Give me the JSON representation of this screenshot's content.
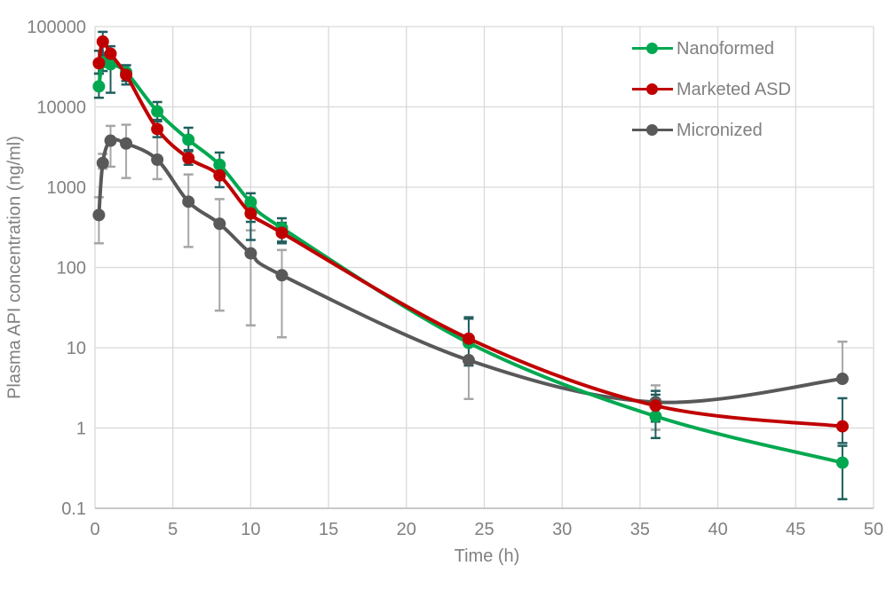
{
  "figure": {
    "background": "#ffffff",
    "text_color": "#808080",
    "gridline_color": "#D9D9D9",
    "axis_line_color": "#C9C9C9"
  },
  "chart_data": {
    "type": "line",
    "title": "",
    "xlabel": "Time (h)",
    "ylabel": "Plasma API concentration (ng/ml)",
    "grid": true,
    "legend_position": "top-right",
    "x_axis": {
      "label": "Time (h)",
      "min": 0,
      "max": 50,
      "ticks": [
        0,
        5,
        10,
        15,
        20,
        25,
        30,
        35,
        40,
        45,
        50
      ]
    },
    "y_axis": {
      "label": "Plasma API concentration (ng/ml)",
      "scale": "log",
      "min": 0.1,
      "max": 100000,
      "tick_labels": [
        "100000",
        "10000",
        "1000",
        "100",
        "10",
        "1",
        "0.1"
      ],
      "tick_values": [
        100000,
        10000,
        1000,
        100,
        10,
        1,
        0.1
      ]
    },
    "x": [
      0.25,
      0.5,
      1,
      2,
      4,
      6,
      8,
      10,
      12,
      24,
      36,
      48
    ],
    "series": [
      {
        "name": "Micronized",
        "color": "#595959",
        "error_color": "#A6A6A6",
        "values": [
          450,
          2000,
          3800,
          3500,
          2200,
          660,
          350,
          150,
          80,
          7,
          2.1,
          4.1
        ],
        "err_lo": [
          200,
          1700,
          1800,
          1300,
          1260,
          180,
          29,
          19,
          13.5,
          2.3,
          0.95,
          4.1
        ],
        "err_hi": [
          750,
          2600,
          5800,
          6000,
          5400,
          1440,
          710,
          290,
          165,
          12,
          3.4,
          11.9
        ]
      },
      {
        "name": "Nanoformed",
        "color": "#00A850",
        "error_color": "#1E5F5A",
        "values": [
          18000,
          36000,
          34000,
          27000,
          8800,
          3900,
          1900,
          650,
          310,
          11.5,
          1.4,
          0.37
        ],
        "err_lo": [
          13000,
          28000,
          15000,
          21000,
          6900,
          2800,
          1400,
          370,
          210,
          6,
          0.75,
          0.13
        ],
        "err_hi": [
          26000,
          44000,
          42000,
          33000,
          11500,
          5500,
          2700,
          840,
          410,
          23,
          2.6,
          0.6
        ]
      },
      {
        "name": "Marketed ASD",
        "color": "#C00000",
        "error_color": "#235E62",
        "values": [
          35000,
          65000,
          46000,
          25000,
          5300,
          2300,
          1400,
          470,
          270,
          13,
          1.9,
          1.05
        ],
        "err_lo": [
          26000,
          47000,
          36000,
          19000,
          4200,
          1900,
          1000,
          220,
          200,
          7,
          1.2,
          0.65
        ],
        "err_hi": [
          50000,
          86000,
          57000,
          33000,
          6600,
          2900,
          1900,
          620,
          360,
          24,
          2.9,
          2.35
        ]
      }
    ],
    "legend_order": [
      "Nanoformed",
      "Marketed ASD",
      "Micronized"
    ]
  }
}
